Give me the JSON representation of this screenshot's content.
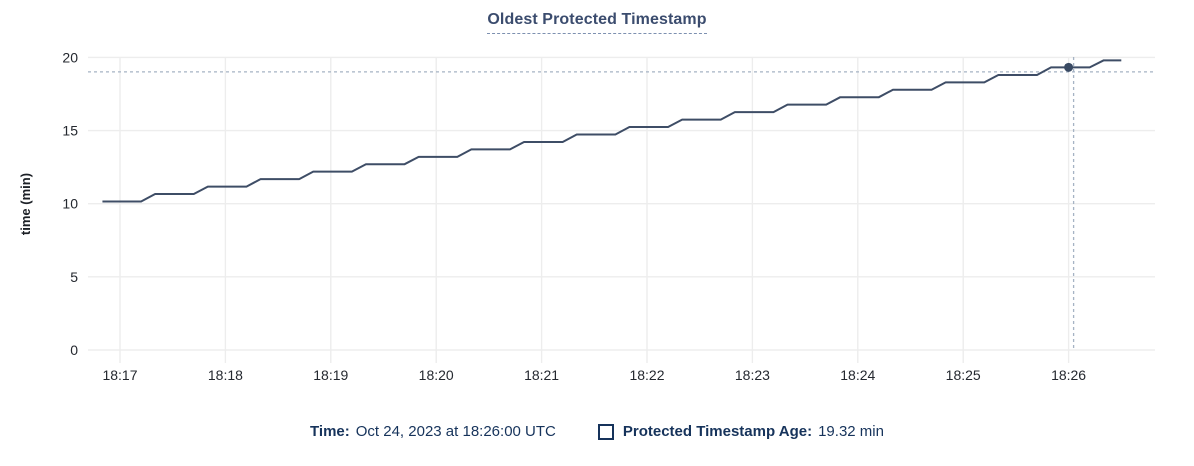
{
  "title": "Oldest Protected Timestamp",
  "chart_data": {
    "type": "line",
    "title": "Oldest Protected Timestamp",
    "xlabel": "",
    "ylabel": "time (min)",
    "ylim": [
      0,
      20
    ],
    "y_ticks": [
      0,
      5,
      10,
      15,
      20
    ],
    "grid": true,
    "legend_position": "bottom",
    "x_ticks": [
      {
        "seconds": 60,
        "label": "18:17"
      },
      {
        "seconds": 120,
        "label": "18:18"
      },
      {
        "seconds": 180,
        "label": "18:19"
      },
      {
        "seconds": 240,
        "label": "18:20"
      },
      {
        "seconds": 300,
        "label": "18:21"
      },
      {
        "seconds": 360,
        "label": "18:22"
      },
      {
        "seconds": 420,
        "label": "18:23"
      },
      {
        "seconds": 480,
        "label": "18:24"
      },
      {
        "seconds": 540,
        "label": "18:25"
      },
      {
        "seconds": 600,
        "label": "18:26"
      }
    ],
    "series": [
      {
        "name": "Protected Timestamp Age",
        "unit": "min",
        "points": [
          [
            50,
            10.15
          ],
          [
            72,
            10.15
          ],
          [
            80,
            10.66
          ],
          [
            102,
            10.66
          ],
          [
            110,
            11.17
          ],
          [
            132,
            11.17
          ],
          [
            140,
            11.68
          ],
          [
            162,
            11.68
          ],
          [
            170,
            12.19
          ],
          [
            192,
            12.19
          ],
          [
            200,
            12.7
          ],
          [
            222,
            12.7
          ],
          [
            230,
            13.2
          ],
          [
            252,
            13.2
          ],
          [
            260,
            13.71
          ],
          [
            282,
            13.71
          ],
          [
            290,
            14.22
          ],
          [
            312,
            14.22
          ],
          [
            320,
            14.73
          ],
          [
            342,
            14.73
          ],
          [
            350,
            15.24
          ],
          [
            372,
            15.24
          ],
          [
            380,
            15.75
          ],
          [
            402,
            15.75
          ],
          [
            410,
            16.26
          ],
          [
            432,
            16.26
          ],
          [
            440,
            16.77
          ],
          [
            462,
            16.77
          ],
          [
            470,
            17.28
          ],
          [
            492,
            17.28
          ],
          [
            500,
            17.79
          ],
          [
            522,
            17.79
          ],
          [
            530,
            18.29
          ],
          [
            552,
            18.29
          ],
          [
            560,
            18.8
          ],
          [
            582,
            18.8
          ],
          [
            590,
            19.32
          ],
          [
            612,
            19.32
          ],
          [
            620,
            19.8
          ],
          [
            630,
            19.8
          ]
        ]
      }
    ],
    "hover_point": {
      "time_label": "18:26:00",
      "seconds": 600,
      "value": 19.32
    }
  },
  "footer": {
    "time_label": "Time:",
    "time_value": "Oct 24, 2023 at 18:26:00 UTC",
    "series_label": "Protected Timestamp Age:",
    "series_value": "19.32 min"
  },
  "colors": {
    "line": "#3e4d66",
    "dot": "#394a63",
    "grid": "#ededed",
    "crosshair": "#a6b3c4",
    "tick_label": "#24282f",
    "axis_title": "#1c2026",
    "title": "#3b4c6e",
    "legend": "#16335b"
  }
}
